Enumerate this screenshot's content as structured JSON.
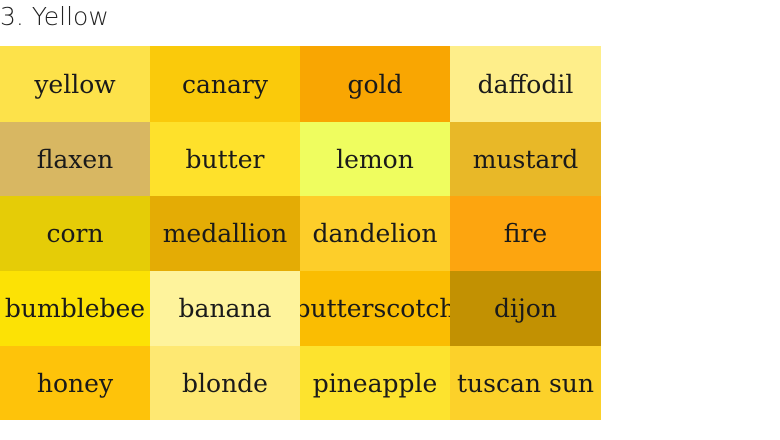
{
  "heading": "3. Yellow",
  "swatches": [
    {
      "name": "yellow",
      "color": "#FDE24A"
    },
    {
      "name": "canary",
      "color": "#FACA0B"
    },
    {
      "name": "gold",
      "color": "#F9A602"
    },
    {
      "name": "daffodil",
      "color": "#FEEE8A"
    },
    {
      "name": "flaxen",
      "color": "#D8B762"
    },
    {
      "name": "butter",
      "color": "#FEE12B"
    },
    {
      "name": "lemon",
      "color": "#EFFD5F"
    },
    {
      "name": "mustard",
      "color": "#E8B828"
    },
    {
      "name": "corn",
      "color": "#E5CC07"
    },
    {
      "name": "medallion",
      "color": "#E4AC05"
    },
    {
      "name": "dandelion",
      "color": "#FDCE2A"
    },
    {
      "name": "fire",
      "color": "#FDA50F"
    },
    {
      "name": "bumblebee",
      "color": "#FCE205"
    },
    {
      "name": "banana",
      "color": "#FEF39C"
    },
    {
      "name": "butterscotch",
      "color": "#FABD02"
    },
    {
      "name": "dijon",
      "color": "#C29102"
    },
    {
      "name": "honey",
      "color": "#FEC30A"
    },
    {
      "name": "blonde",
      "color": "#FEE872"
    },
    {
      "name": "pineapple",
      "color": "#FDE32E"
    },
    {
      "name": "tuscan sun",
      "color": "#FCD12A"
    }
  ]
}
